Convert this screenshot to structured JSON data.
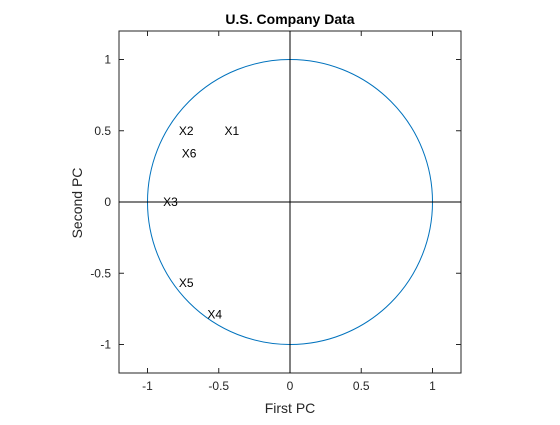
{
  "chart_data": {
    "type": "scatter",
    "title": "U.S. Company Data",
    "xlabel": "First PC",
    "ylabel": "Second PC",
    "xlim": [
      -1.2,
      1.2
    ],
    "ylim": [
      -1.2,
      1.2
    ],
    "xticks": [
      -1,
      -0.5,
      0,
      0.5,
      1
    ],
    "yticks": [
      -1,
      -0.5,
      0,
      0.5,
      1
    ],
    "xtick_labels": [
      "-1",
      "-0.5",
      "0",
      "0.5",
      "1"
    ],
    "ytick_labels": [
      "-1",
      "-0.5",
      "0",
      "0.5",
      "1"
    ],
    "grid": false,
    "unit_circle": {
      "center": [
        0,
        0
      ],
      "radius": 1,
      "color": "#0072bd"
    },
    "reference_lines": {
      "x": 0,
      "y": 0,
      "color": "#000000"
    },
    "points": [
      {
        "label": "X1",
        "x": -0.46,
        "y": 0.5
      },
      {
        "label": "X2",
        "x": -0.78,
        "y": 0.5
      },
      {
        "label": "X3",
        "x": -0.89,
        "y": 0.0
      },
      {
        "label": "X4",
        "x": -0.58,
        "y": -0.79
      },
      {
        "label": "X5",
        "x": -0.78,
        "y": -0.57
      },
      {
        "label": "X6",
        "x": -0.76,
        "y": 0.34
      }
    ]
  }
}
